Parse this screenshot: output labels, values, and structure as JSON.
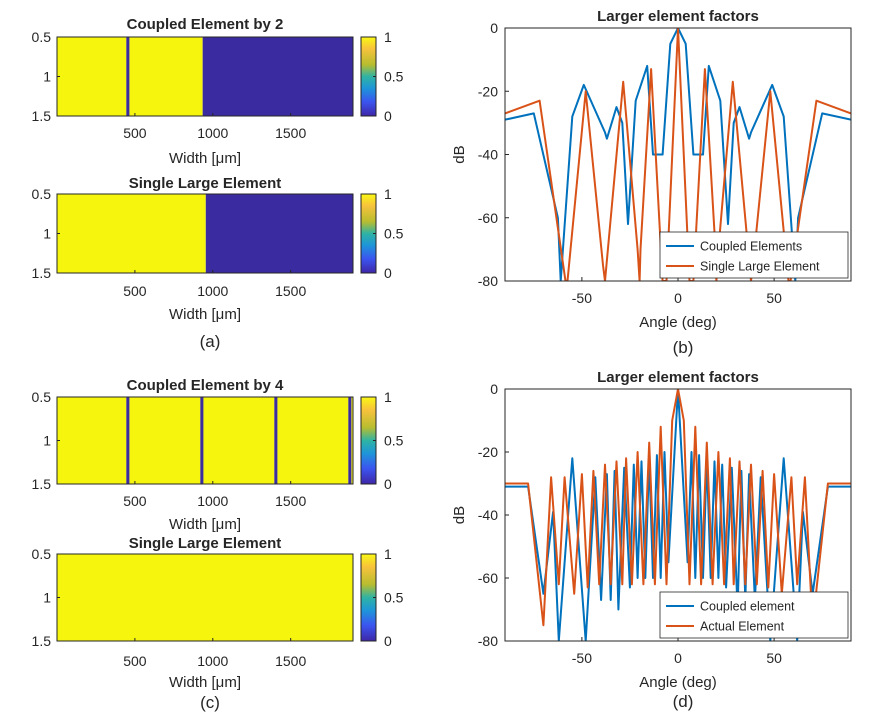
{
  "colors": {
    "yellow": "#F5F50E",
    "navy": "#3A2CA0",
    "blue": "#0072BD",
    "orange": "#D95319",
    "axis": "#262626"
  },
  "colormap_stops": [
    "#FAF914",
    "#F7C23C",
    "#B8BD2F",
    "#2FB3A3",
    "#1E95D9",
    "#3B55F0",
    "#3E26A8"
  ],
  "panel_labels": {
    "a": "(a)",
    "b": "(b)",
    "c": "(c)",
    "d": "(d)"
  },
  "chart_data": [
    {
      "id": "a1",
      "type": "heatmap",
      "title": "Coupled Element by 2",
      "xlabel": "Width [μm]",
      "xlim": [
        0,
        1900
      ],
      "ylim": [
        0.5,
        1.5
      ],
      "xticks": [
        "500",
        "1000",
        "1500"
      ],
      "xtick_values": [
        500,
        1000,
        1500
      ],
      "yticks": [
        "0.5",
        "1",
        "1.5"
      ],
      "ytick_values": [
        0.5,
        1,
        1.5
      ],
      "colorbar_ticks": [
        "1",
        "0.5",
        "0"
      ],
      "colorbar_values": [
        1,
        0.5,
        0
      ],
      "segments": [
        {
          "from": 0,
          "to": 445,
          "value": 1
        },
        {
          "from": 445,
          "to": 465,
          "value": 0
        },
        {
          "from": 465,
          "to": 935,
          "value": 1
        },
        {
          "from": 935,
          "to": 1900,
          "value": 0
        }
      ]
    },
    {
      "id": "a2",
      "type": "heatmap",
      "title": "Single Large Element",
      "xlabel": "Width [μm]",
      "xlim": [
        0,
        1900
      ],
      "ylim": [
        0.5,
        1.5
      ],
      "xticks": [
        "500",
        "1000",
        "1500"
      ],
      "xtick_values": [
        500,
        1000,
        1500
      ],
      "yticks": [
        "0.5",
        "1",
        "1.5"
      ],
      "ytick_values": [
        0.5,
        1,
        1.5
      ],
      "colorbar_ticks": [
        "1",
        "0.5",
        "0"
      ],
      "colorbar_values": [
        1,
        0.5,
        0
      ],
      "segments": [
        {
          "from": 0,
          "to": 955,
          "value": 1
        },
        {
          "from": 955,
          "to": 1900,
          "value": 0
        }
      ]
    },
    {
      "id": "c1",
      "type": "heatmap",
      "title": "Coupled Element by 4",
      "xlabel": "Width [μm]",
      "xlim": [
        0,
        1900
      ],
      "ylim": [
        0.5,
        1.5
      ],
      "xticks": [
        "500",
        "1000",
        "1500"
      ],
      "xtick_values": [
        500,
        1000,
        1500
      ],
      "yticks": [
        "0.5",
        "1",
        "1.5"
      ],
      "ytick_values": [
        0.5,
        1,
        1.5
      ],
      "colorbar_ticks": [
        "1",
        "0.5",
        "0"
      ],
      "colorbar_values": [
        1,
        0.5,
        0
      ],
      "segments": [
        {
          "from": 0,
          "to": 445,
          "value": 1
        },
        {
          "from": 445,
          "to": 465,
          "value": 0
        },
        {
          "from": 465,
          "to": 920,
          "value": 1
        },
        {
          "from": 920,
          "to": 940,
          "value": 0
        },
        {
          "from": 940,
          "to": 1395,
          "value": 1
        },
        {
          "from": 1395,
          "to": 1415,
          "value": 0
        },
        {
          "from": 1415,
          "to": 1870,
          "value": 1
        },
        {
          "from": 1870,
          "to": 1890,
          "value": 0
        },
        {
          "from": 1890,
          "to": 1900,
          "value": 1
        }
      ]
    },
    {
      "id": "c2",
      "type": "heatmap",
      "title": "Single Large Element",
      "xlabel": "Width [μm]",
      "xlim": [
        0,
        1900
      ],
      "ylim": [
        0.5,
        1.5
      ],
      "xticks": [
        "500",
        "1000",
        "1500"
      ],
      "xtick_values": [
        500,
        1000,
        1500
      ],
      "yticks": [
        "0.5",
        "1",
        "1.5"
      ],
      "ytick_values": [
        0.5,
        1,
        1.5
      ],
      "colorbar_ticks": [
        "1",
        "0.5",
        "0"
      ],
      "colorbar_values": [
        1,
        0.5,
        0
      ],
      "segments": [
        {
          "from": 0,
          "to": 1900,
          "value": 1
        }
      ]
    },
    {
      "id": "b",
      "type": "line",
      "title": "Larger element factors",
      "xlabel": "Angle (deg)",
      "ylabel": "dB",
      "xlim": [
        -90,
        90
      ],
      "ylim": [
        -80,
        0
      ],
      "xticks": [
        "-50",
        "0",
        "50"
      ],
      "xtick_values": [
        -50,
        0,
        50
      ],
      "yticks": [
        "0",
        "-20",
        "-40",
        "-60",
        "-80"
      ],
      "ytick_values": [
        0,
        -20,
        -40,
        -60,
        -80
      ],
      "legend_position": "bottom-right",
      "series": [
        {
          "name": "Coupled Elements",
          "color": "#0072BD",
          "x": [
            -90,
            -75,
            -62.5,
            -61,
            -55,
            -49,
            -38,
            -37,
            -32,
            -29,
            -26,
            -22,
            -16,
            -13,
            -8,
            -4,
            0,
            4,
            8,
            13,
            16,
            22,
            26,
            29,
            32,
            37,
            38,
            49,
            55,
            61,
            62.5,
            75,
            90
          ],
          "y": [
            -29,
            -27,
            -60,
            -80,
            -28,
            -18,
            -33,
            -35,
            -25,
            -30,
            -62,
            -23,
            -12,
            -40,
            -40,
            -5,
            0,
            -5,
            -40,
            -40,
            -12,
            -23,
            -62,
            -30,
            -25,
            -35,
            -33,
            -18,
            -28,
            -80,
            -60,
            -27,
            -29
          ]
        },
        {
          "name": "Single Large Element",
          "color": "#D95319",
          "x": [
            -90,
            -72,
            -58.5,
            -57.5,
            -48,
            -39,
            -38,
            -28.5,
            -21,
            -20,
            -19.5,
            -14,
            -8,
            -6,
            0,
            6,
            8,
            14,
            19.5,
            20,
            21,
            28.5,
            38,
            39,
            48,
            57.5,
            58.5,
            72,
            90
          ],
          "y": [
            -27,
            -23,
            -80,
            -80,
            -20,
            -75,
            -80,
            -17,
            -70,
            -80,
            -70,
            -13,
            -80,
            -80,
            0,
            -80,
            -80,
            -13,
            -70,
            -80,
            -70,
            -17,
            -80,
            -75,
            -20,
            -80,
            -80,
            -23,
            -27
          ]
        }
      ]
    },
    {
      "id": "d",
      "type": "line",
      "title": "Larger element factors",
      "xlabel": "Angle (deg)",
      "ylabel": "dB",
      "xlim": [
        -90,
        90
      ],
      "ylim": [
        -80,
        0
      ],
      "xticks": [
        "-50",
        "0",
        "50"
      ],
      "xtick_values": [
        -50,
        0,
        50
      ],
      "yticks": [
        "0",
        "-20",
        "-40",
        "-60",
        "-80"
      ],
      "ytick_values": [
        0,
        -20,
        -40,
        -60,
        -80
      ],
      "legend_position": "bottom-right",
      "series": [
        {
          "name": "Coupled element",
          "color": "#0072BD",
          "x": [
            -90,
            -78,
            -70,
            -65,
            -62,
            -55,
            -48,
            -43,
            -40,
            -37,
            -35,
            -33,
            -31,
            -28,
            -25,
            -23,
            -21,
            -19,
            -17,
            -15,
            -13,
            -11,
            -9,
            -7,
            -5,
            0,
            5,
            7,
            9,
            11,
            13,
            15,
            17,
            19,
            21,
            23,
            25,
            28,
            31,
            33,
            35,
            37,
            40,
            43,
            48,
            55,
            62,
            65,
            70,
            78,
            90
          ],
          "y": [
            -31,
            -31,
            -65,
            -39,
            -80,
            -22,
            -80,
            -28,
            -67,
            -27,
            -67,
            -26,
            -70,
            -25,
            -63,
            -24,
            -60,
            -23,
            -60,
            -22,
            -60,
            -21,
            -60,
            -20,
            -55,
            0,
            -55,
            -20,
            -60,
            -21,
            -60,
            -22,
            -60,
            -23,
            -60,
            -24,
            -63,
            -25,
            -70,
            -26,
            -67,
            -27,
            -67,
            -28,
            -80,
            -22,
            -80,
            -39,
            -65,
            -31,
            -31
          ]
        },
        {
          "name": "Actual Element",
          "color": "#D95319",
          "x": [
            -90,
            -78,
            -70,
            -66,
            -62,
            -59,
            -54,
            -50,
            -47,
            -44,
            -41,
            -38,
            -35,
            -32,
            -29,
            -27,
            -24,
            -21,
            -18,
            -15,
            -12,
            -9,
            -6,
            -3,
            0,
            3,
            6,
            9,
            12,
            15,
            18,
            21,
            24,
            27,
            29,
            32,
            35,
            38,
            41,
            44,
            47,
            50,
            54,
            59,
            62,
            66,
            70,
            78,
            90
          ],
          "y": [
            -30,
            -30,
            -75,
            -28,
            -62,
            -28,
            -65,
            -27,
            -63,
            -26,
            -62,
            -24,
            -62,
            -23,
            -62,
            -22,
            -62,
            -20,
            -62,
            -17,
            -62,
            -12,
            -62,
            -10,
            0,
            -10,
            -62,
            -12,
            -62,
            -17,
            -62,
            -20,
            -62,
            -22,
            -62,
            -23,
            -62,
            -24,
            -62,
            -26,
            -63,
            -27,
            -65,
            -28,
            -62,
            -28,
            -75,
            -30,
            -30
          ]
        }
      ]
    }
  ]
}
